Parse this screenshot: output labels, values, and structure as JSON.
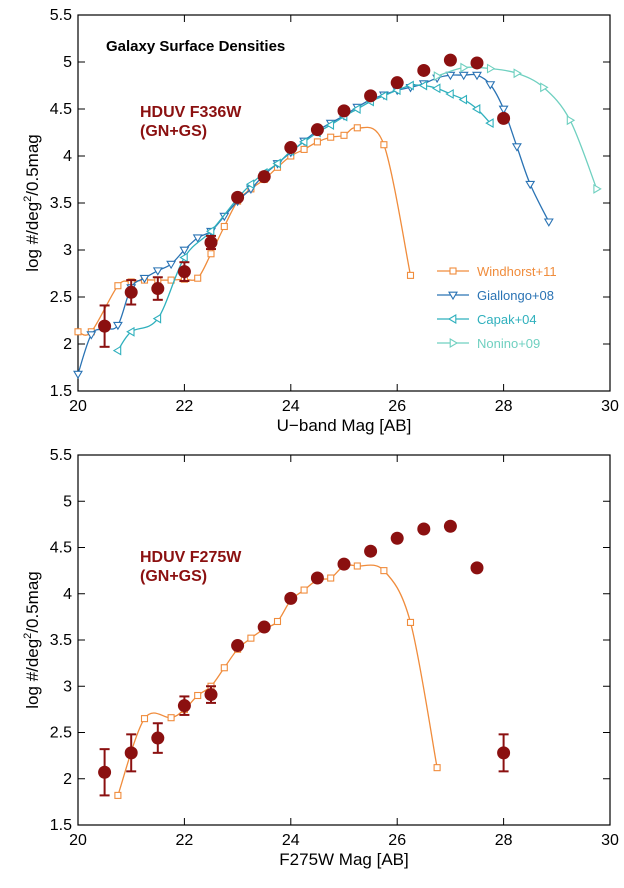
{
  "chart_data": [
    {
      "type": "scatter",
      "title": "Galaxy Surface Densities",
      "annotation": [
        "HDUV F336W",
        "(GN+GS)"
      ],
      "annotation_color": "#8b1010",
      "xlabel": "U−band Mag [AB]",
      "ylabel_parts": [
        "log  #/deg",
        "2",
        "/0.5mag"
      ],
      "xlim": [
        20,
        30
      ],
      "ylim": [
        1.5,
        5.5
      ],
      "xticks": [
        "20",
        "22",
        "24",
        "26",
        "28",
        "30"
      ],
      "yticks": [
        "1.5",
        "2",
        "2.5",
        "3",
        "3.5",
        "4",
        "4.5",
        "5",
        "5.5"
      ],
      "legend_position": "bottom-right",
      "series": [
        {
          "name": "Windhorst+11",
          "color": "#f08c3c",
          "marker": "square",
          "x": [
            20.0,
            20.25,
            20.75,
            21.0,
            21.25,
            21.5,
            21.75,
            22.0,
            22.25,
            22.5,
            22.75,
            23.0,
            23.25,
            23.5,
            23.75,
            24.0,
            24.25,
            24.5,
            24.75,
            25.0,
            25.25,
            25.75,
            26.25
          ],
          "y": [
            2.13,
            2.13,
            2.62,
            2.66,
            2.68,
            2.68,
            2.68,
            2.69,
            2.7,
            2.96,
            3.25,
            3.52,
            3.65,
            3.75,
            3.88,
            4.0,
            4.07,
            4.15,
            4.2,
            4.22,
            4.3,
            4.12,
            2.73
          ]
        },
        {
          "name": "Giallongo+08",
          "color": "#2a73b4",
          "marker": "triangle-down",
          "x": [
            20.0,
            20.25,
            20.5,
            20.75,
            21.0,
            21.25,
            21.5,
            21.75,
            22.0,
            22.25,
            22.5,
            22.75,
            23.0,
            23.25,
            23.5,
            23.75,
            24.0,
            24.25,
            24.5,
            24.75,
            25.0,
            25.25,
            25.5,
            25.75,
            26.0,
            26.25,
            26.5,
            26.75,
            27.0,
            27.25,
            27.5,
            27.75,
            28.0,
            28.25,
            28.5,
            28.85
          ],
          "y": [
            1.68,
            2.1,
            2.16,
            2.2,
            2.6,
            2.7,
            2.78,
            2.85,
            3.0,
            3.13,
            3.2,
            3.36,
            3.52,
            3.65,
            3.8,
            3.92,
            4.04,
            4.16,
            4.27,
            4.35,
            4.43,
            4.52,
            4.6,
            4.65,
            4.7,
            4.73,
            4.77,
            4.83,
            4.86,
            4.86,
            4.86,
            4.76,
            4.5,
            4.1,
            3.7,
            3.3
          ]
        },
        {
          "name": "Capak+04",
          "color": "#2fb0bd",
          "marker": "triangle-left",
          "x": [
            20.75,
            21.0,
            21.5,
            22.0,
            22.5,
            23.0,
            23.25,
            23.5,
            23.75,
            24.0,
            24.25,
            24.5,
            24.75,
            25.0,
            25.25,
            25.5,
            25.75,
            26.0,
            26.25,
            26.5,
            26.75,
            27.0,
            27.25,
            27.5,
            27.75
          ],
          "y": [
            1.93,
            2.13,
            2.27,
            2.92,
            3.2,
            3.55,
            3.7,
            3.82,
            3.92,
            4.05,
            4.15,
            4.25,
            4.33,
            4.42,
            4.5,
            4.58,
            4.64,
            4.7,
            4.75,
            4.75,
            4.72,
            4.66,
            4.6,
            4.5,
            4.35
          ]
        },
        {
          "name": "Nonino+09",
          "color": "#6fd0c0",
          "marker": "triangle-right",
          "x": [
            26.75,
            27.25,
            27.75,
            28.25,
            28.75,
            29.25,
            29.75
          ],
          "y": [
            4.85,
            4.94,
            4.93,
            4.88,
            4.73,
            4.38,
            3.65
          ]
        },
        {
          "name": "HDUV F336W",
          "color": "#8b1010",
          "marker": "circle",
          "legend": false,
          "x": [
            20.5,
            21.0,
            21.5,
            22.0,
            22.5,
            23.0,
            23.5,
            24.0,
            24.5,
            25.0,
            25.5,
            26.0,
            26.5,
            27.0,
            27.5,
            28.0
          ],
          "y": [
            2.19,
            2.55,
            2.59,
            2.77,
            3.08,
            3.56,
            3.78,
            4.09,
            4.28,
            4.48,
            4.64,
            4.78,
            4.91,
            5.02,
            4.99,
            4.4
          ],
          "err": [
            0.22,
            0.13,
            0.12,
            0.1,
            0.07,
            0,
            0,
            0,
            0,
            0,
            0,
            0,
            0,
            0,
            0,
            0
          ]
        }
      ]
    },
    {
      "type": "scatter",
      "title": "",
      "annotation": [
        "HDUV F275W",
        "(GN+GS)"
      ],
      "annotation_color": "#8b1010",
      "xlabel": "F275W Mag [AB]",
      "ylabel_parts": [
        "log  #/deg",
        "2",
        "/0.5mag"
      ],
      "xlim": [
        20,
        30
      ],
      "ylim": [
        1.5,
        5.5
      ],
      "xticks": [
        "20",
        "22",
        "24",
        "26",
        "28",
        "30"
      ],
      "yticks": [
        "1.5",
        "2",
        "2.5",
        "3",
        "3.5",
        "4",
        "4.5",
        "5",
        "5.5"
      ],
      "series": [
        {
          "name": "Windhorst+11",
          "color": "#f08c3c",
          "marker": "square",
          "legend": false,
          "x": [
            20.75,
            21.25,
            21.75,
            22.0,
            22.25,
            22.5,
            22.75,
            23.0,
            23.25,
            23.5,
            23.75,
            24.0,
            24.25,
            24.5,
            24.75,
            25.0,
            25.25,
            25.75,
            26.25,
            26.75
          ],
          "y": [
            1.82,
            2.65,
            2.66,
            2.75,
            2.9,
            3.0,
            3.2,
            3.4,
            3.52,
            3.62,
            3.7,
            3.93,
            4.04,
            4.15,
            4.17,
            4.3,
            4.3,
            4.25,
            3.69,
            2.12
          ]
        },
        {
          "name": "HDUV F275W",
          "color": "#8b1010",
          "marker": "circle",
          "legend": false,
          "x": [
            20.5,
            21.0,
            21.5,
            22.0,
            22.5,
            23.0,
            23.5,
            24.0,
            24.5,
            25.0,
            25.5,
            26.0,
            26.5,
            27.0,
            27.5,
            28.0
          ],
          "y": [
            2.07,
            2.28,
            2.44,
            2.79,
            2.91,
            3.44,
            3.64,
            3.95,
            4.17,
            4.32,
            4.46,
            4.6,
            4.7,
            4.73,
            4.28,
            2.28
          ],
          "err": [
            0.25,
            0.2,
            0.16,
            0.1,
            0.09,
            0,
            0,
            0,
            0,
            0,
            0,
            0,
            0,
            0,
            0,
            0.2
          ]
        }
      ]
    }
  ]
}
